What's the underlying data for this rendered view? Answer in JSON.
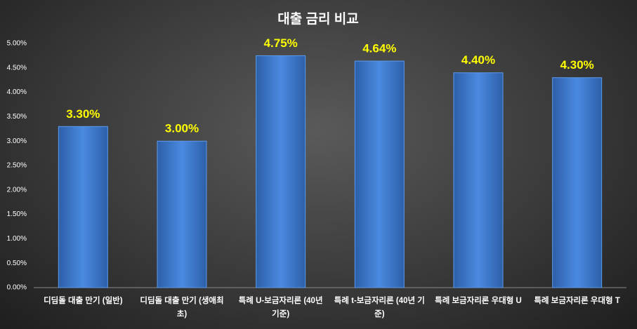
{
  "chart_data": {
    "type": "bar",
    "title": "대출 금리 비교",
    "categories": [
      "디딤돌 대출 만기 (일반)",
      "디딤돌 대출 만기 (생애최초)",
      "특례 U-보금자리론 (40년 기준)",
      "특례 t-보금자리론 (40년 기준)",
      "특례 보금자리론 우대형 U",
      "특례 보금자리론 우대형 T"
    ],
    "values": [
      3.3,
      3.0,
      4.75,
      4.64,
      4.4,
      4.3
    ],
    "value_labels": [
      "3.30%",
      "3.00%",
      "4.75%",
      "4.64%",
      "4.40%",
      "4.30%"
    ],
    "color": "#3f7fd6",
    "value_label_color": "#ffff00",
    "ylim": [
      0,
      5
    ],
    "yticks": [
      {
        "value": 0,
        "label": "0.00%"
      },
      {
        "value": 0.5,
        "label": "0.50%"
      },
      {
        "value": 1,
        "label": "1.00%"
      },
      {
        "value": 1.5,
        "label": "1.50%"
      },
      {
        "value": 2,
        "label": "2.00%"
      },
      {
        "value": 2.5,
        "label": "2.50%"
      },
      {
        "value": 3,
        "label": "3.00%"
      },
      {
        "value": 3.5,
        "label": "3.50%"
      },
      {
        "value": 4,
        "label": "4.00%"
      },
      {
        "value": 4.5,
        "label": "4.50%"
      },
      {
        "value": 5,
        "label": "5.00%"
      }
    ],
    "grid": false
  }
}
